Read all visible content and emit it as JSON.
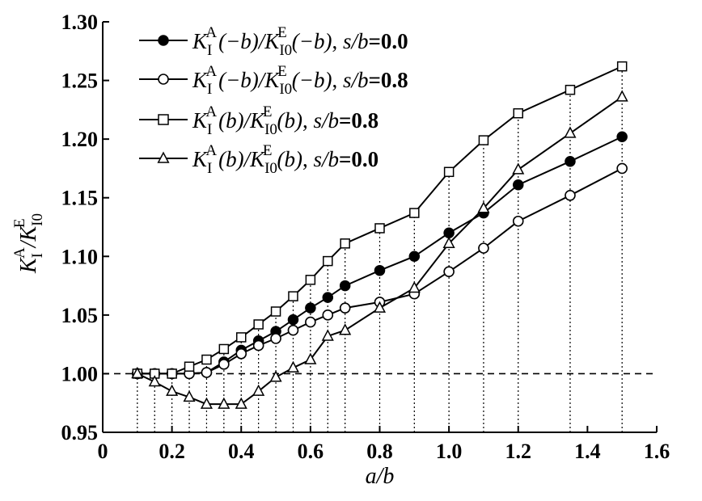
{
  "chart_data": {
    "type": "line",
    "xlabel": "a/b",
    "ylabel": "K_I^A / K_I0^E",
    "xlim": [
      0,
      1.6
    ],
    "ylim": [
      0.95,
      1.3
    ],
    "xticks": [
      0,
      0.2,
      0.4,
      0.6,
      0.8,
      1.0,
      1.2,
      1.4,
      1.6
    ],
    "yticks": [
      0.95,
      1.0,
      1.05,
      1.1,
      1.15,
      1.2,
      1.25,
      1.3
    ],
    "xtick_labels": [
      "0",
      "0.2",
      "0.4",
      "0.6",
      "0.8",
      "1.0",
      "1.2",
      "1.4",
      "1.6"
    ],
    "ytick_labels": [
      "0.95",
      "1.00",
      "1.05",
      "1.10",
      "1.15",
      "1.20",
      "1.25",
      "1.30"
    ],
    "reference_line": {
      "y": 1.0,
      "style": "dashed"
    },
    "vertical_guides": {
      "style": "dotted",
      "from_y": 0.95,
      "to": "data"
    },
    "grid": false,
    "legend_position": "top-left",
    "x": [
      0.1,
      0.15,
      0.2,
      0.25,
      0.3,
      0.35,
      0.4,
      0.45,
      0.5,
      0.55,
      0.6,
      0.65,
      0.7,
      0.8,
      0.9,
      1.0,
      1.1,
      1.2,
      1.35,
      1.5
    ],
    "series": [
      {
        "name": "K_I^A(−b)/K_I0^E(−b), s/b=0.0",
        "marker": "filled-circle",
        "values": [
          1.0,
          1.0,
          1.0,
          1.0,
          1.001,
          1.01,
          1.02,
          1.028,
          1.036,
          1.046,
          1.056,
          1.065,
          1.075,
          1.088,
          1.1,
          1.12,
          1.137,
          1.161,
          1.181,
          1.202
        ]
      },
      {
        "name": "K_I^A(−b)/K_I0^E(−b), s/b=0.8",
        "marker": "open-circle",
        "values": [
          1.0,
          1.0,
          1.0,
          1.0,
          1.001,
          1.008,
          1.017,
          1.024,
          1.03,
          1.037,
          1.044,
          1.05,
          1.056,
          1.061,
          1.068,
          1.087,
          1.107,
          1.13,
          1.152,
          1.175
        ]
      },
      {
        "name": "K_I^A(b)/K_I0^E(b), s/b=0.8",
        "marker": "open-square",
        "values": [
          1.0,
          1.0,
          1.0,
          1.006,
          1.012,
          1.021,
          1.031,
          1.042,
          1.053,
          1.066,
          1.08,
          1.096,
          1.111,
          1.124,
          1.137,
          1.172,
          1.199,
          1.222,
          1.242,
          1.262
        ]
      },
      {
        "name": "K_I^A(b)/K_I0^E(b), s/b=0.0",
        "marker": "open-triangle",
        "values": [
          1.0,
          0.993,
          0.985,
          0.98,
          0.974,
          0.974,
          0.974,
          0.985,
          0.997,
          1.005,
          1.012,
          1.032,
          1.037,
          1.056,
          1.073,
          1.111,
          1.141,
          1.174,
          1.205,
          1.236
        ]
      }
    ],
    "legend_items": [
      {
        "num": "K",
        "num_sup": "A",
        "num_sub": "I",
        "num_arg": "(−b)",
        "den": "K",
        "den_sup": "E",
        "den_sub": "I0",
        "den_arg": "(−b)",
        "cond_var": "s/b",
        "cond_val": "=0.0"
      },
      {
        "num": "K",
        "num_sup": "A",
        "num_sub": "I",
        "num_arg": "(−b)",
        "den": "K",
        "den_sup": "E",
        "den_sub": "I0",
        "den_arg": "(−b)",
        "cond_var": "s/b",
        "cond_val": "=0.8"
      },
      {
        "num": "K",
        "num_sup": "A",
        "num_sub": "I",
        "num_arg": "(b)",
        "den": "K",
        "den_sup": "E",
        "den_sub": "I0",
        "den_arg": "(b)",
        "cond_var": "s/b",
        "cond_val": "=0.8"
      },
      {
        "num": "K",
        "num_sup": "A",
        "num_sub": "I",
        "num_arg": "(b)",
        "den": "K",
        "den_sup": "E",
        "den_sub": "I0",
        "den_arg": "(b)",
        "cond_var": "s/b",
        "cond_val": "=0.0"
      }
    ],
    "ylabel_parts": {
      "num": "K",
      "num_sup": "A",
      "num_sub": "I",
      "sep": "/",
      "den": "K",
      "den_sup": "E",
      "den_sub": "I0"
    },
    "colors": {
      "line": "#000000",
      "background": "#ffffff"
    }
  }
}
